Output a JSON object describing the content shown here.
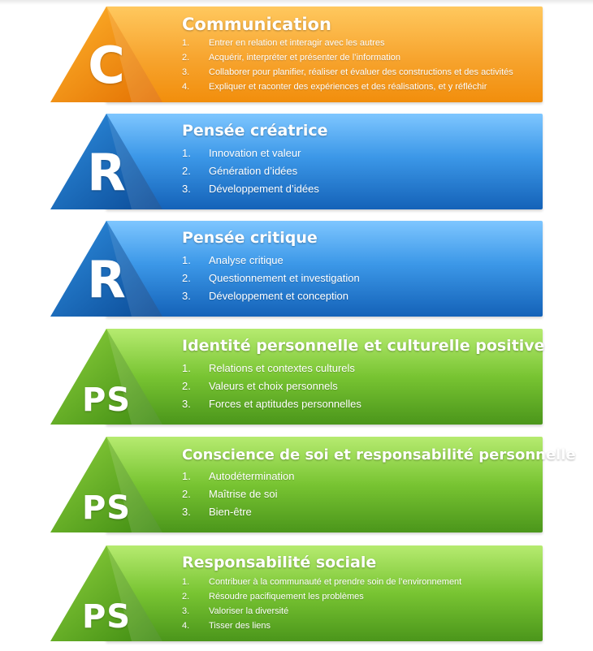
{
  "colors": {
    "orange": "#f7a42e",
    "blue": "#2a82d6",
    "green": "#6fbf2c",
    "text": "#ffffff"
  },
  "blocks": [
    {
      "letter": "C",
      "title": "Communication",
      "items": [
        {
          "num": "1.",
          "text": "Entrer en relation et interagir avec les autres"
        },
        {
          "num": "2.",
          "text": "Acquérir, interpréter et présenter de l’information"
        },
        {
          "num": "3.",
          "text": "Collaborer pour planifier, réaliser et évaluer des constructions et des activités"
        },
        {
          "num": "4.",
          "text": "Expliquer et raconter des expériences et des réalisations, et y réfléchir"
        }
      ]
    },
    {
      "letter": "R",
      "title": "Pensée créatrice",
      "items": [
        {
          "num": "1.",
          "text": "Innovation et valeur"
        },
        {
          "num": "2.",
          "text": "Génération d’idées"
        },
        {
          "num": "3.",
          "text": "Développement d’idées"
        }
      ]
    },
    {
      "letter": "R",
      "title": "Pensée critique",
      "items": [
        {
          "num": "1.",
          "text": "Analyse critique"
        },
        {
          "num": "2.",
          "text": "Questionnement et investigation"
        },
        {
          "num": "3.",
          "text": "Développement et conception"
        }
      ]
    },
    {
      "letter": "PS",
      "title": "Identité personnelle et culturelle positive",
      "items": [
        {
          "num": "1.",
          "text": "Relations et contextes culturels"
        },
        {
          "num": "2.",
          "text": "Valeurs et choix personnels"
        },
        {
          "num": "3.",
          "text": "Forces et aptitudes personnelles"
        }
      ]
    },
    {
      "letter": "PS",
      "title": "Conscience de soi et responsabilité personnelle",
      "items": [
        {
          "num": "1.",
          "text": "Autodétermination"
        },
        {
          "num": "2.",
          "text": "Maîtrise de soi"
        },
        {
          "num": "3.",
          "text": "Bien-être"
        }
      ]
    },
    {
      "letter": "PS",
      "title": "Responsabilité sociale",
      "items": [
        {
          "num": "1.",
          "text": "Contribuer à la communauté et prendre soin de l’environnement"
        },
        {
          "num": "2.",
          "text": "Résoudre pacifiquement les problèmes"
        },
        {
          "num": "3.",
          "text": "Valoriser la diversité"
        },
        {
          "num": "4.",
          "text": "Tisser des liens"
        }
      ]
    }
  ]
}
